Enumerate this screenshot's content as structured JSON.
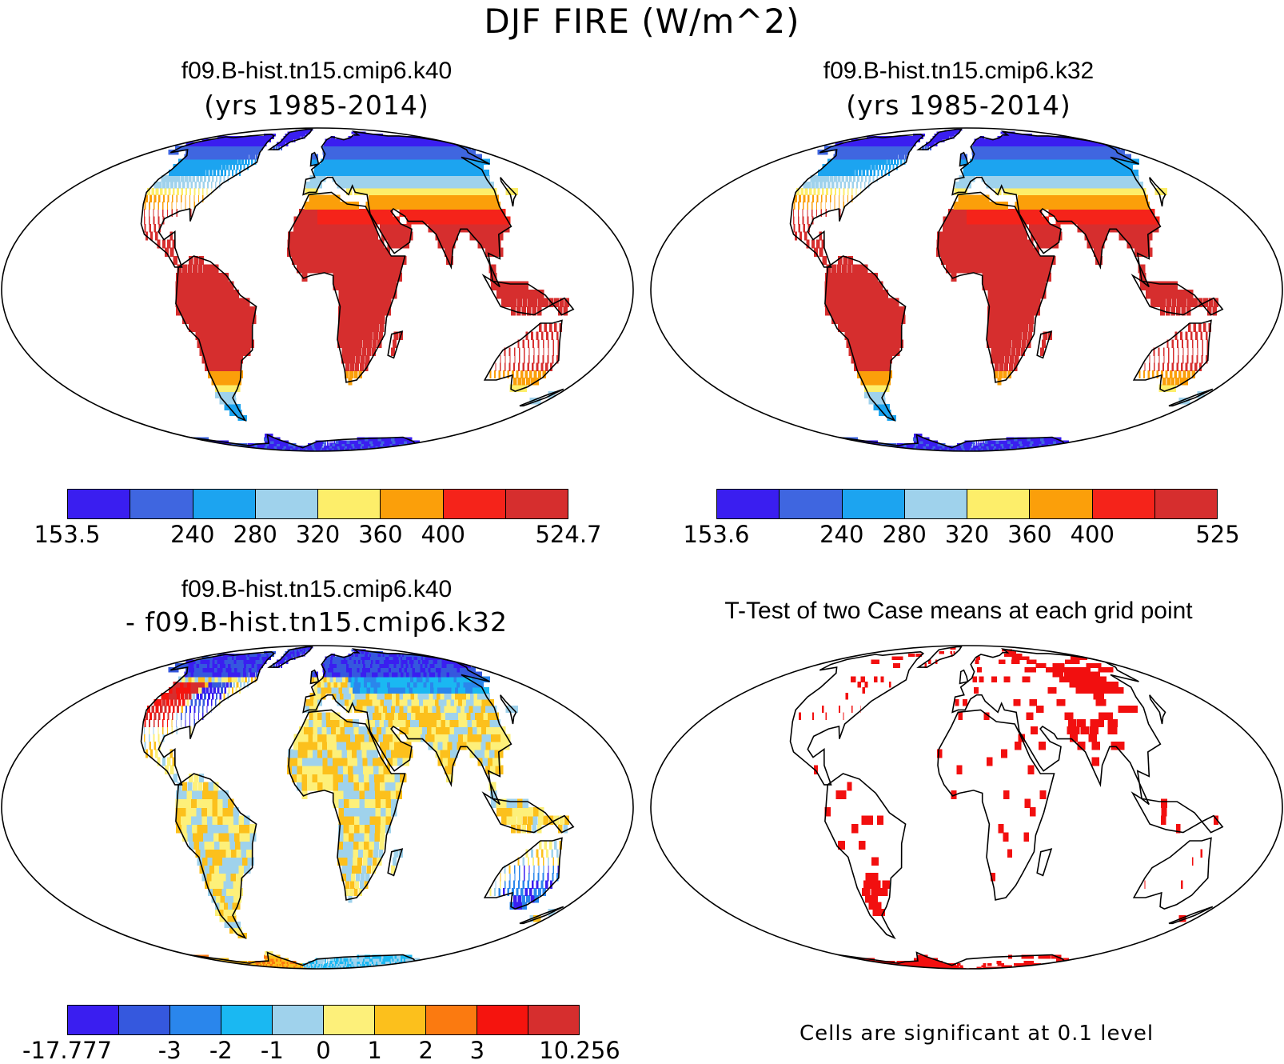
{
  "title": "DJF FIRE (W/m^2)",
  "panels": {
    "top_left": {
      "title": "f09.B-hist.tn15.cmip6.k40",
      "subtitle": "(yrs 1985-2014)"
    },
    "top_right": {
      "title": "f09.B-hist.tn15.cmip6.k32",
      "subtitle": "(yrs 1985-2014)"
    },
    "bottom_left": {
      "title": "f09.B-hist.tn15.cmip6.k40",
      "subtitle": "- f09.B-hist.tn15.cmip6.k32"
    },
    "bottom_right": {
      "title": "T-Test of two Case means at each grid point",
      "note": "Cells are significant at 0.1 level"
    }
  },
  "colorbars": {
    "top_left": {
      "colors": [
        "#3a1ef0",
        "#3f66e0",
        "#1ca4f0",
        "#9fd2ec",
        "#fdee6a",
        "#fb9f0a",
        "#f5231a",
        "#d62e2e"
      ],
      "labels": [
        "153.5",
        "240",
        "280",
        "320",
        "360",
        "400",
        "524.7"
      ]
    },
    "top_right": {
      "colors": [
        "#3a1ef0",
        "#3f66e0",
        "#1ca4f0",
        "#9fd2ec",
        "#fdee6a",
        "#fb9f0a",
        "#f5231a",
        "#d62e2e"
      ],
      "labels": [
        "153.6",
        "240",
        "280",
        "320",
        "360",
        "400",
        "525"
      ]
    },
    "bottom_left": {
      "colors": [
        "#3a1ef0",
        "#3558de",
        "#2a86ec",
        "#1ab8f2",
        "#9fd2ec",
        "#fdf07a",
        "#fcc01c",
        "#fb7a10",
        "#f5140e",
        "#d62e2e"
      ],
      "labels": [
        "-17.777",
        "-3",
        "-2",
        "-1",
        "0",
        "1",
        "2",
        "3",
        "10.256"
      ]
    }
  },
  "colors": {
    "ocean": "#ffffff",
    "coast": "#000000",
    "significant": "#f20f0f"
  }
}
